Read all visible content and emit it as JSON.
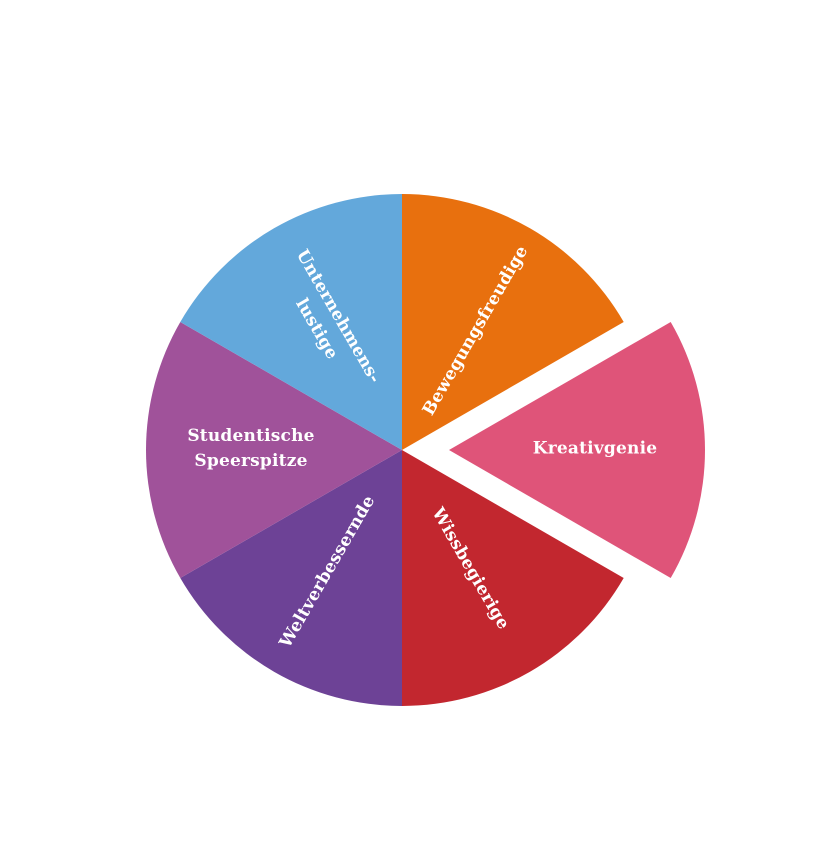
{
  "page": {
    "background_color": "#FFFFFF"
  },
  "chart_data": {
    "type": "pie",
    "title": "",
    "legend": "none",
    "start_angle_deg": 0,
    "direction": "clockwise",
    "label_color": "#FFFFFF",
    "slices": [
      {
        "label": "Bewegungsfreudige",
        "lines": [
          "Bewegungsfreudige"
        ],
        "value_fraction": 0.1667,
        "angle_deg": 60,
        "color": "#E8700E",
        "exploded": false,
        "label_rotation_deg": -60
      },
      {
        "label": "Kreativgenie",
        "lines": [
          "Kreativgenie"
        ],
        "value_fraction": 0.1667,
        "angle_deg": 60,
        "color": "#DF5479",
        "exploded": true,
        "label_rotation_deg": 0
      },
      {
        "label": "Wissbegierige",
        "lines": [
          "Wissbegierige"
        ],
        "value_fraction": 0.1667,
        "angle_deg": 60,
        "color": "#C2272F",
        "exploded": false,
        "label_rotation_deg": 60
      },
      {
        "label": "Weltverbessernde",
        "lines": [
          "Weltverbessernde"
        ],
        "value_fraction": 0.1667,
        "angle_deg": 60,
        "color": "#6D4296",
        "exploded": false,
        "label_rotation_deg": -60
      },
      {
        "label": "Studentische Speerspitze",
        "lines": [
          "Studentische",
          "Speerspitze"
        ],
        "value_fraction": 0.1667,
        "angle_deg": 60,
        "color": "#A0529A",
        "exploded": false,
        "label_rotation_deg": 0
      },
      {
        "label": "Unternehmens-lustige",
        "lines": [
          "Unternehmens-",
          "lustige"
        ],
        "value_fraction": 0.1667,
        "angle_deg": 60,
        "color": "#63A8DB",
        "exploded": false,
        "label_rotation_deg": 60
      }
    ]
  }
}
